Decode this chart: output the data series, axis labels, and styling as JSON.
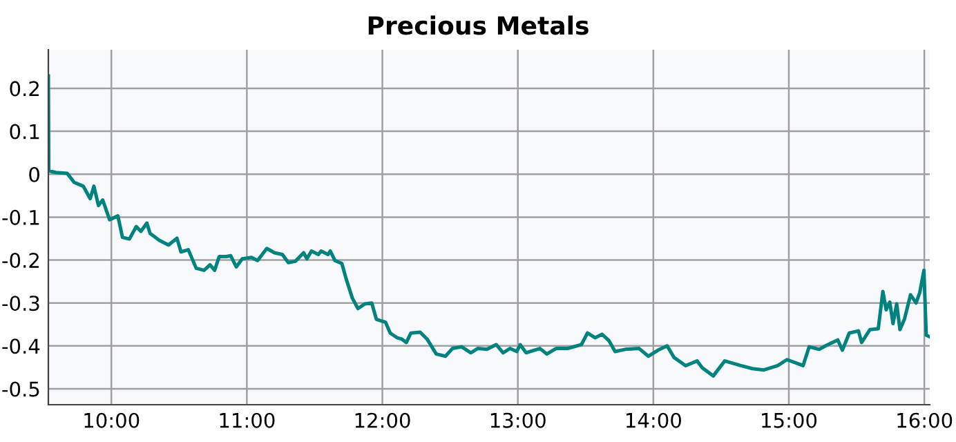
{
  "chart_data": {
    "type": "line",
    "title": "Precious Metals",
    "x": [
      9.535,
      9.538,
      9.589,
      9.674,
      9.725,
      9.793,
      9.844,
      9.871,
      9.905,
      9.936,
      9.987,
      10.048,
      10.082,
      10.133,
      10.184,
      10.218,
      10.262,
      10.286,
      10.354,
      10.422,
      10.484,
      10.514,
      10.568,
      10.626,
      10.684,
      10.728,
      10.762,
      10.796,
      10.847,
      10.881,
      10.922,
      10.966,
      11.034,
      11.079,
      11.147,
      11.204,
      11.262,
      11.306,
      11.357,
      11.419,
      11.443,
      11.477,
      11.528,
      11.548,
      11.599,
      11.616,
      11.65,
      11.701,
      11.735,
      11.779,
      11.82,
      11.871,
      11.922,
      11.956,
      12.024,
      12.058,
      12.109,
      12.143,
      12.177,
      12.211,
      12.279,
      12.33,
      12.398,
      12.466,
      12.517,
      12.585,
      12.653,
      12.704,
      12.772,
      12.84,
      12.891,
      12.942,
      12.993,
      13.017,
      13.061,
      13.163,
      13.214,
      13.282,
      13.367,
      13.469,
      13.514,
      13.571,
      13.622,
      13.673,
      13.718,
      13.793,
      13.895,
      13.963,
      14.034,
      14.102,
      14.153,
      14.238,
      14.323,
      14.361,
      14.442,
      14.527,
      14.646,
      14.731,
      14.816,
      14.918,
      14.986,
      15.054,
      15.105,
      15.15,
      15.224,
      15.276,
      15.361,
      15.395,
      15.446,
      15.514,
      15.537,
      15.599,
      15.66,
      15.694,
      15.718,
      15.745,
      15.769,
      15.796,
      15.82,
      15.854,
      15.898,
      15.939,
      15.966,
      15.997,
      16.014,
      16.034
    ],
    "series": [
      {
        "color": "#00827f",
        "values": [
          0.229,
          0.008,
          0.004,
          0.002,
          -0.019,
          -0.028,
          -0.057,
          -0.028,
          -0.073,
          -0.06,
          -0.106,
          -0.097,
          -0.147,
          -0.151,
          -0.122,
          -0.133,
          -0.114,
          -0.138,
          -0.154,
          -0.165,
          -0.149,
          -0.181,
          -0.176,
          -0.219,
          -0.224,
          -0.211,
          -0.224,
          -0.192,
          -0.192,
          -0.19,
          -0.216,
          -0.197,
          -0.194,
          -0.201,
          -0.173,
          -0.183,
          -0.187,
          -0.206,
          -0.203,
          -0.183,
          -0.197,
          -0.179,
          -0.187,
          -0.179,
          -0.187,
          -0.179,
          -0.201,
          -0.208,
          -0.246,
          -0.289,
          -0.313,
          -0.302,
          -0.3,
          -0.338,
          -0.345,
          -0.37,
          -0.381,
          -0.384,
          -0.392,
          -0.37,
          -0.368,
          -0.384,
          -0.419,
          -0.424,
          -0.406,
          -0.402,
          -0.416,
          -0.406,
          -0.408,
          -0.397,
          -0.416,
          -0.406,
          -0.413,
          -0.397,
          -0.416,
          -0.406,
          -0.419,
          -0.406,
          -0.406,
          -0.397,
          -0.37,
          -0.381,
          -0.373,
          -0.388,
          -0.413,
          -0.408,
          -0.406,
          -0.424,
          -0.41,
          -0.4,
          -0.427,
          -0.446,
          -0.435,
          -0.451,
          -0.47,
          -0.435,
          -0.446,
          -0.453,
          -0.456,
          -0.446,
          -0.432,
          -0.44,
          -0.446,
          -0.402,
          -0.408,
          -0.399,
          -0.386,
          -0.41,
          -0.37,
          -0.365,
          -0.392,
          -0.362,
          -0.36,
          -0.273,
          -0.316,
          -0.298,
          -0.348,
          -0.302,
          -0.362,
          -0.337,
          -0.281,
          -0.3,
          -0.276,
          -0.224,
          -0.375,
          -0.378
        ]
      }
    ],
    "xlim": [
      9.535,
      16.04
    ],
    "xticks": [
      {
        "value": 10,
        "label": "10:00"
      },
      {
        "value": 11,
        "label": "11:00"
      },
      {
        "value": 12,
        "label": "12:00"
      },
      {
        "value": 13,
        "label": "13:00"
      },
      {
        "value": 14,
        "label": "14:00"
      },
      {
        "value": 15,
        "label": "15:00"
      },
      {
        "value": 16,
        "label": "16:00"
      }
    ],
    "ylim": [
      -0.537,
      0.29
    ],
    "yticks": [
      0.2,
      0.1,
      0,
      -0.1,
      -0.2,
      -0.3,
      -0.4,
      -0.5
    ],
    "grid": true,
    "line_style": "solid"
  }
}
